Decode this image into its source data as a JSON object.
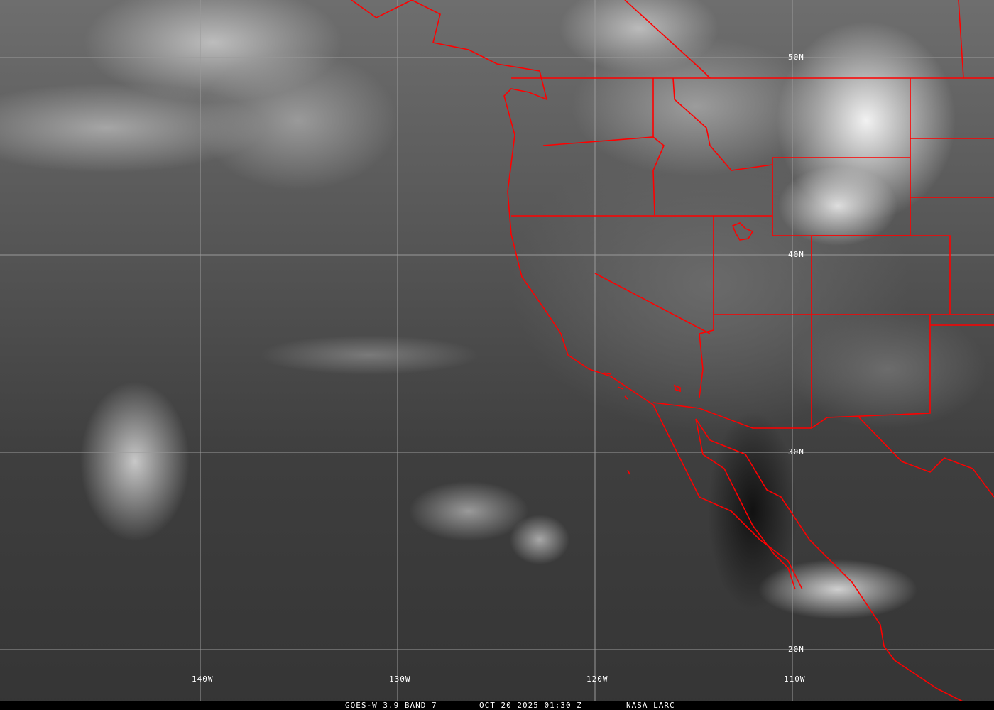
{
  "caption": {
    "satellite_band": "GOES-W 3.9 BAND 7",
    "datetime": "OCT 20 2025 01:30 Z",
    "source": "NASA LARC"
  },
  "grid": {
    "longitude_labels": [
      "140W",
      "130W",
      "120W",
      "110W"
    ],
    "latitude_labels": [
      "50N",
      "40N",
      "30N",
      "20N"
    ]
  },
  "colors": {
    "borders": "#ff0000",
    "grid": "#9a9a9a",
    "label": "#ffffff"
  },
  "image_type": "infrared satellite imagery, grayscale"
}
